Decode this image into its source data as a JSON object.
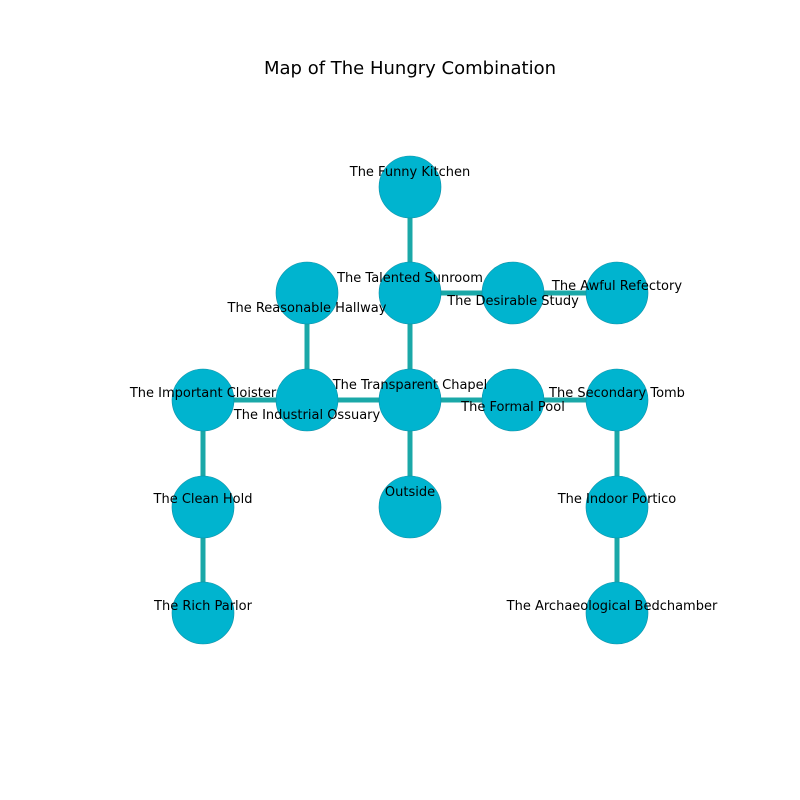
{
  "title": "Map of The Hungry Combination",
  "colors": {
    "edge": "#1aa8a8",
    "node_fill": "#00b4cf",
    "node_stroke": "#0a8fa6"
  },
  "rooms": [
    {
      "id": "funny-kitchen",
      "label": "The Funny Kitchen"
    },
    {
      "id": "talented-sunroom",
      "label": "The Talented Sunroom"
    },
    {
      "id": "desirable-study",
      "label": "The Desirable Study"
    },
    {
      "id": "awful-refectory",
      "label": "The Awful Refectory"
    },
    {
      "id": "reasonable-hallway",
      "label": "The Reasonable Hallway"
    },
    {
      "id": "important-cloister",
      "label": "The Important Cloister"
    },
    {
      "id": "industrial-ossuary",
      "label": "The Industrial Ossuary"
    },
    {
      "id": "transparent-chapel",
      "label": "The Transparent Chapel"
    },
    {
      "id": "formal-pool",
      "label": "The Formal Pool"
    },
    {
      "id": "secondary-tomb",
      "label": "The Secondary Tomb"
    },
    {
      "id": "clean-hold",
      "label": "The Clean Hold"
    },
    {
      "id": "outside",
      "label": "Outside"
    },
    {
      "id": "indoor-portico",
      "label": "The Indoor Portico"
    },
    {
      "id": "rich-parlor",
      "label": "The Rich Parlor"
    },
    {
      "id": "archaeological-bedchamber",
      "label": "The Archaeological Bedchamber"
    }
  ],
  "connections": [
    [
      "funny-kitchen",
      "talented-sunroom"
    ],
    [
      "talented-sunroom",
      "desirable-study"
    ],
    [
      "desirable-study",
      "awful-refectory"
    ],
    [
      "talented-sunroom",
      "transparent-chapel"
    ],
    [
      "reasonable-hallway",
      "industrial-ossuary"
    ],
    [
      "important-cloister",
      "industrial-ossuary"
    ],
    [
      "industrial-ossuary",
      "transparent-chapel"
    ],
    [
      "transparent-chapel",
      "formal-pool"
    ],
    [
      "formal-pool",
      "secondary-tomb"
    ],
    [
      "transparent-chapel",
      "outside"
    ],
    [
      "important-cloister",
      "clean-hold"
    ],
    [
      "clean-hold",
      "rich-parlor"
    ],
    [
      "secondary-tomb",
      "indoor-portico"
    ],
    [
      "indoor-portico",
      "archaeological-bedchamber"
    ]
  ]
}
